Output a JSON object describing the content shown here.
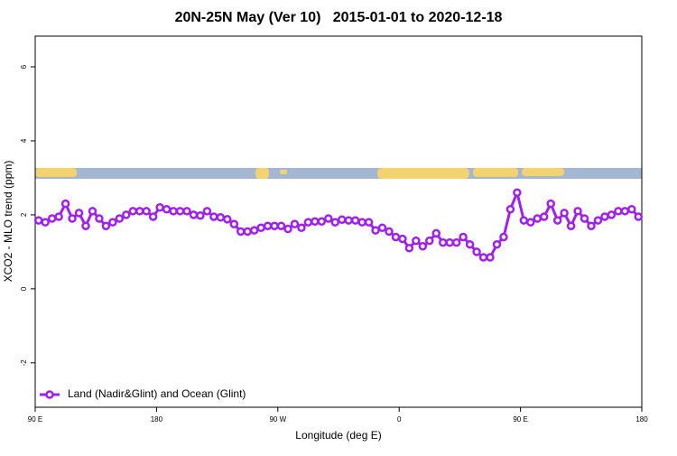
{
  "chart_data": {
    "type": "line",
    "title": "20N-25N May (Ver 10)   2015-01-01 to 2020-12-18",
    "x_label": "Longitude (deg E)",
    "y_label": "XCO2 - MLO trend (ppm)",
    "xlim": [
      90,
      540
    ],
    "ylim": [
      -3.2,
      6.83
    ],
    "xticks": [
      {
        "value": 90,
        "label": "90 E"
      },
      180,
      {
        "value": 270,
        "label": "90 W"
      },
      {
        "value": 360,
        "label": "0"
      },
      {
        "value": 450,
        "label": "90 E"
      },
      {
        "value": 540,
        "label": "180"
      }
    ],
    "yticks": [
      -2,
      0,
      2,
      4,
      6
    ],
    "legend": "bottom-left",
    "x": [
      92.5,
      97.5,
      102.5,
      107.5,
      112.5,
      117.5,
      122.5,
      127.5,
      132.5,
      137.5,
      142.5,
      147.5,
      152.5,
      157.5,
      162.5,
      167.5,
      172.5,
      177.5,
      182.5,
      187.5,
      192.5,
      197.5,
      202.5,
      207.5,
      212.5,
      217.5,
      222.5,
      227.5,
      232.5,
      237.5,
      242.5,
      247.5,
      252.5,
      257.5,
      262.5,
      267.5,
      272.5,
      277.5,
      282.5,
      287.5,
      292.5,
      297.5,
      302.5,
      307.5,
      312.5,
      317.5,
      322.5,
      327.5,
      332.5,
      337.5,
      342.5,
      347.5,
      352.5,
      357.5,
      362.5,
      367.5,
      372.5,
      377.5,
      382.5,
      387.5,
      392.5,
      397.5,
      402.5,
      407.5,
      412.5,
      417.5,
      422.5,
      427.5,
      432.5,
      437.5,
      442.5,
      447.5,
      452.5,
      457.5,
      462.5,
      467.5,
      472.5,
      477.5,
      482.5,
      487.5,
      492.5,
      497.5,
      502.5,
      507.5,
      512.5,
      517.5,
      522.5,
      527.5,
      532.5,
      537.5
    ],
    "series": [
      {
        "name": "Land (Nadir&Glint) and Ocean (Glint)",
        "color": "#a020f0",
        "values": [
          1.85,
          1.8,
          1.9,
          1.95,
          2.3,
          1.9,
          2.05,
          1.7,
          2.1,
          1.9,
          1.7,
          1.8,
          1.9,
          2.0,
          2.1,
          2.1,
          2.1,
          1.95,
          2.2,
          2.15,
          2.1,
          2.1,
          2.1,
          2.0,
          1.98,
          2.1,
          1.95,
          1.93,
          1.88,
          1.75,
          1.55,
          1.55,
          1.58,
          1.65,
          1.7,
          1.7,
          1.7,
          1.62,
          1.75,
          1.65,
          1.8,
          1.82,
          1.82,
          1.9,
          1.8,
          1.87,
          1.85,
          1.85,
          1.8,
          1.8,
          1.58,
          1.65,
          1.55,
          1.4,
          1.35,
          1.1,
          1.3,
          1.15,
          1.3,
          1.5,
          1.25,
          1.25,
          1.25,
          1.4,
          1.2,
          1.0,
          0.85,
          0.85,
          1.2,
          1.4,
          2.15,
          2.6,
          1.85,
          1.8,
          1.9,
          1.95,
          2.3,
          1.85,
          2.05,
          1.7,
          2.1,
          1.9,
          1.7,
          1.85,
          1.95,
          2.0,
          2.1,
          2.1,
          2.15,
          1.95
        ]
      }
    ]
  }
}
